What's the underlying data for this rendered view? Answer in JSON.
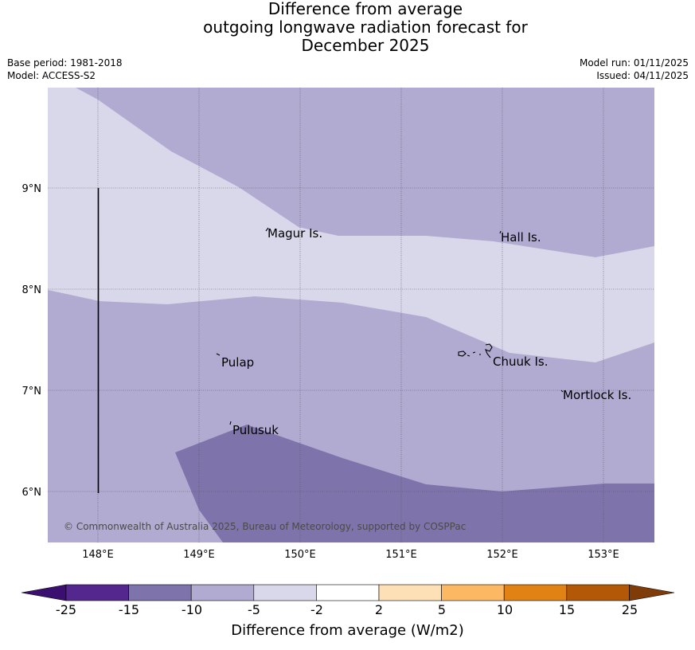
{
  "title": "Difference from average\noutgoing longwave radiation forecast for\nDecember 2025",
  "meta_left": {
    "base_period": "Base period: 1981-2018",
    "model": "Model: ACCESS-S2"
  },
  "meta_right": {
    "model_run": "Model run: 01/11/2025",
    "issued": "Issued: 04/11/2025"
  },
  "map": {
    "lat_labels": [
      "9°N",
      "8°N",
      "7°N",
      "6°N"
    ],
    "lon_labels": [
      "148°E",
      "149°E",
      "150°E",
      "151°E",
      "152°E",
      "153°E"
    ],
    "places": [
      "Magur Is.",
      "Hall Is.",
      "Pulap",
      "Chuuk Is.",
      "Mortlock Is.",
      "Pulusuk"
    ],
    "copyright": "© Commonwealth of Australia 2025, Bureau of Meteorology, supported by COSPPac",
    "zone_colors": {
      "light": "#d8d8ea",
      "mid": "#b1abd1",
      "dark": "#7f73ab"
    }
  },
  "colorbar": {
    "ticks": [
      "-25",
      "-15",
      "-10",
      "-5",
      "-2",
      "2",
      "5",
      "10",
      "15",
      "25"
    ],
    "colors": [
      "#3b0f6f",
      "#54278f",
      "#7f73ab",
      "#b1abd1",
      "#d8d8ea",
      "#ffffff",
      "#fee0b6",
      "#fdb863",
      "#e08214",
      "#b35806",
      "#7f3b08"
    ],
    "label": "Difference from average (W/m2)"
  }
}
